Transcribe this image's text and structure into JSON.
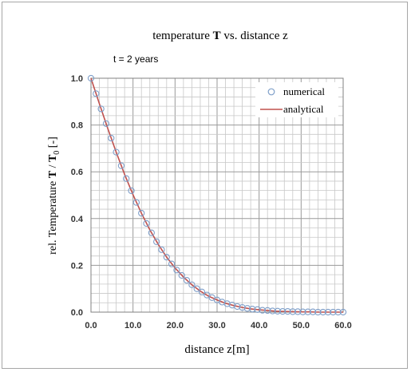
{
  "chart_data": {
    "type": "line",
    "title_parts": [
      "temperature ",
      "T",
      " vs. distance z"
    ],
    "annotation": "t = 2 years",
    "xlabel": "distance  z[m]",
    "ylabel_parts": [
      "rel. Temperature ",
      "T",
      " / ",
      "T",
      "0",
      " [-]"
    ],
    "xlim": [
      0,
      60
    ],
    "ylim": [
      0,
      1
    ],
    "x_ticks": [
      "0.0",
      "10.0",
      "20.0",
      "30.0",
      "40.0",
      "50.0",
      "60.0"
    ],
    "y_ticks": [
      "0.0",
      "0.2",
      "0.4",
      "0.6",
      "0.8",
      "1.0"
    ],
    "grid": true,
    "legend_position": "top-right",
    "series": [
      {
        "name": "numerical",
        "style": "markers",
        "color": "#7f9fc9",
        "x": [
          0,
          1.2,
          2.4,
          3.6,
          4.8,
          6,
          7.2,
          8.4,
          9.6,
          10.8,
          12,
          13.2,
          14.4,
          15.6,
          16.8,
          18,
          19.2,
          20.4,
          21.6,
          22.8,
          24,
          25.2,
          26.4,
          27.6,
          28.8,
          30,
          31.2,
          32.4,
          33.6,
          34.8,
          36,
          37.2,
          38.4,
          39.6,
          40.8,
          42,
          43.2,
          44.4,
          45.6,
          46.8,
          48,
          49.2,
          50.4,
          51.6,
          52.8,
          54,
          55.2,
          56.4,
          57.6,
          58.8,
          60
        ],
        "y": [
          1.0,
          0.934,
          0.869,
          0.806,
          0.744,
          0.684,
          0.626,
          0.571,
          0.519,
          0.469,
          0.423,
          0.379,
          0.339,
          0.301,
          0.267,
          0.235,
          0.206,
          0.18,
          0.157,
          0.136,
          0.117,
          0.1,
          0.086,
          0.073,
          0.062,
          0.052,
          0.043,
          0.036,
          0.03,
          0.024,
          0.02,
          0.016,
          0.013,
          0.011,
          0.008,
          0.007,
          0.005,
          0.004,
          0.003,
          0.003,
          0.002,
          0.002,
          0.001,
          0.001,
          0.001,
          0.0,
          0.0,
          0.0,
          0.0,
          0.0,
          0.0
        ]
      },
      {
        "name": "analytical",
        "style": "line",
        "color": "#c0504d",
        "x": [
          0,
          2,
          4,
          6,
          8,
          10,
          12,
          14,
          16,
          18,
          20,
          22,
          24,
          26,
          28,
          30,
          32,
          34,
          36,
          38,
          40,
          42,
          44,
          46,
          48,
          50,
          52,
          54,
          56,
          58,
          60
        ],
        "y": [
          1.0,
          0.891,
          0.785,
          0.684,
          0.589,
          0.502,
          0.423,
          0.352,
          0.29,
          0.235,
          0.189,
          0.15,
          0.117,
          0.09,
          0.068,
          0.052,
          0.038,
          0.028,
          0.02,
          0.014,
          0.01,
          0.007,
          0.004,
          0.003,
          0.002,
          0.001,
          0.001,
          0.0,
          0.0,
          0.0,
          0.0
        ]
      }
    ]
  }
}
